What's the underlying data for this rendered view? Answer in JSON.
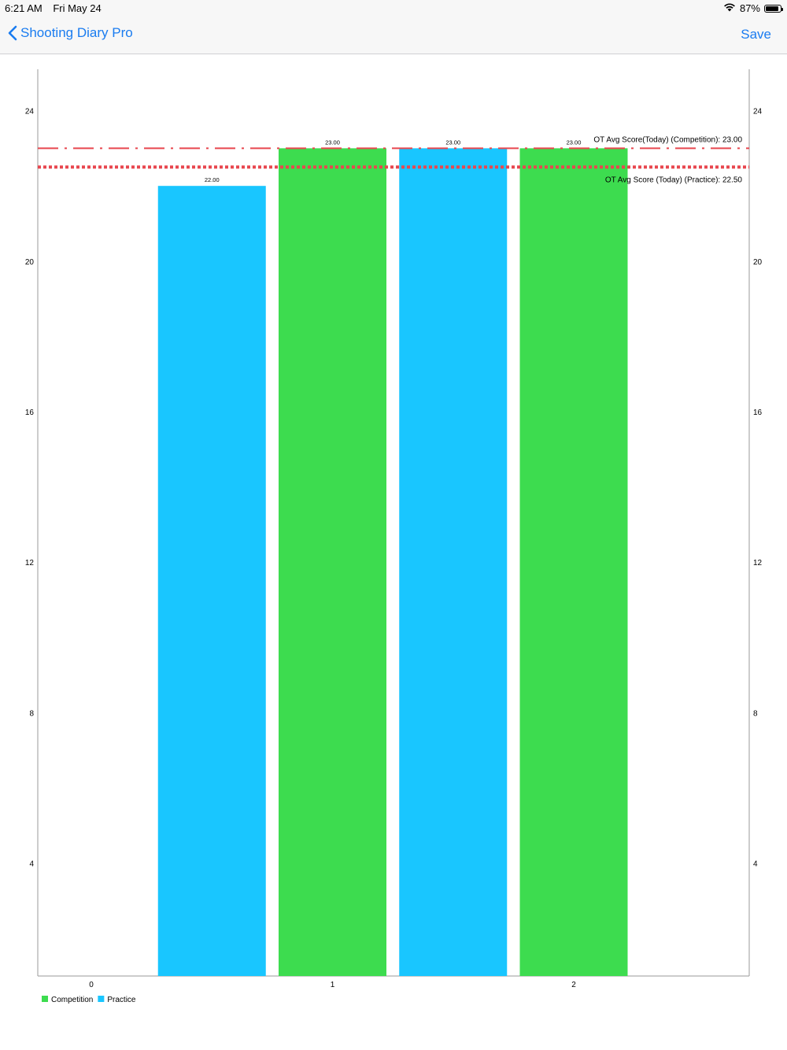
{
  "status_bar": {
    "time": "6:21 AM",
    "date": "Fri May 24",
    "battery_percent": "87%",
    "battery_level": 0.87
  },
  "nav": {
    "back_label": "Shooting Diary Pro",
    "save_label": "Save"
  },
  "colors": {
    "accent": "#1a7cf0",
    "competition": "#3ddc4f",
    "practice": "#19c6ff",
    "limit_line": "#e8474f"
  },
  "chart_data": {
    "type": "bar",
    "x_ticks": [
      "0",
      "1",
      "2"
    ],
    "y_ticks": [
      "4",
      "8",
      "12",
      "16",
      "20",
      "24"
    ],
    "ylim": [
      1,
      25.1
    ],
    "bars": [
      {
        "series": "Practice",
        "x": 0.5,
        "value": 22,
        "label": "22.00"
      },
      {
        "series": "Competition",
        "x": 1,
        "value": 23,
        "label": "23.00"
      },
      {
        "series": "Practice",
        "x": 1.5,
        "value": 23,
        "label": "23.00"
      },
      {
        "series": "Competition",
        "x": 2,
        "value": 23,
        "label": "23.00"
      }
    ],
    "series": [
      {
        "name": "Competition",
        "color": "#3ddc4f"
      },
      {
        "name": "Practice",
        "color": "#19c6ff"
      }
    ],
    "limit_lines": [
      {
        "value": 23.0,
        "label": "OT Avg Score(Today)  (Competition): 23.00",
        "style": "dash-dot"
      },
      {
        "value": 22.5,
        "label": "OT Avg Score (Today)  (Practice): 22.50",
        "style": "dotted"
      }
    ],
    "legend_position": "bottom-left",
    "grid": false
  }
}
